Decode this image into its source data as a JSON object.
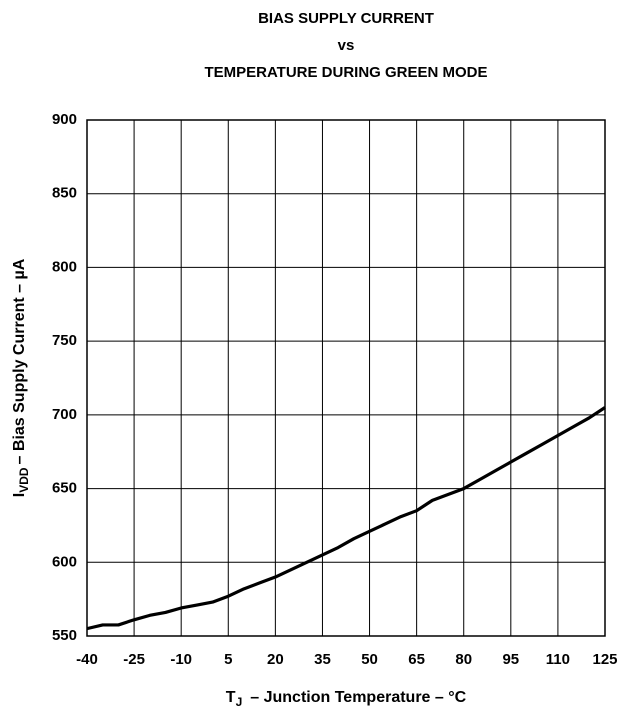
{
  "chart_data": {
    "type": "line",
    "title": [
      "BIAS SUPPLY CURRENT",
      "vs",
      "TEMPERATURE DURING GREEN MODE"
    ],
    "xlabel": {
      "main": "T",
      "sub": "J",
      "rest": "– Junction Temperature – °C"
    },
    "ylabel": {
      "main": "I",
      "sub": "VDD",
      "rest": "– Bias Supply Current – µA"
    },
    "x": [
      -40,
      -35,
      -30,
      -25,
      -20,
      -15,
      -10,
      -5,
      0,
      5,
      10,
      15,
      20,
      25,
      30,
      35,
      40,
      45,
      50,
      55,
      60,
      65,
      70,
      75,
      80,
      85,
      90,
      95,
      100,
      105,
      110,
      115,
      120,
      125
    ],
    "series": [
      {
        "color": "#000000",
        "values": [
          555,
          557.5,
          557.5,
          561,
          564,
          566,
          569,
          571,
          573,
          577,
          582,
          586,
          590,
          595,
          600,
          605,
          610,
          616,
          621,
          626,
          631,
          635,
          642,
          646,
          650,
          656,
          662,
          668,
          674,
          680,
          686,
          692,
          698,
          705
        ]
      }
    ],
    "xlim": [
      -40,
      125
    ],
    "xticks": [
      -40,
      -25,
      -10,
      5,
      20,
      35,
      50,
      65,
      80,
      95,
      110,
      125
    ],
    "ylim": [
      550,
      900
    ],
    "yticks": [
      550,
      600,
      650,
      700,
      750,
      800,
      850,
      900
    ],
    "grid": true
  }
}
